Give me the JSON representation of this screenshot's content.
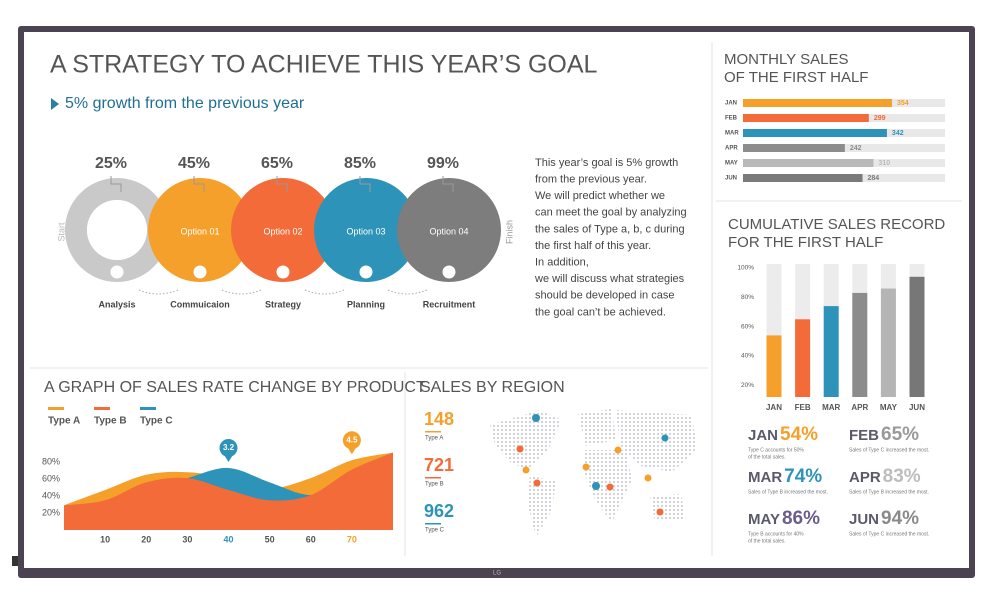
{
  "title": "A STRATEGY TO ACHIEVE THIS YEAR’S GOAL",
  "subtitle": "5% growth from the previous year",
  "steps": {
    "start": "Start",
    "finish": "Finish",
    "items": [
      {
        "percent": "25%",
        "label": "Analysis",
        "color": "#c9c9c9"
      },
      {
        "percent": "45%",
        "option": "Option 01",
        "label": "Commuicaion",
        "color": "#f5a02a"
      },
      {
        "percent": "65%",
        "option": "Option 02",
        "label": "Strategy",
        "color": "#f26b38"
      },
      {
        "percent": "85%",
        "option": "Option 03",
        "label": "Planning",
        "color": "#2e93b8"
      },
      {
        "percent": "99%",
        "option": "Option 04",
        "label": "Recruitment",
        "color": "#7d7d7d"
      }
    ]
  },
  "description": [
    "This year’s goal is 5% growth",
    "from the previous year.",
    "We will predict whether we",
    "can meet the goal by analyzing",
    "the sales of Type a, b, c during",
    "the first half of this year.",
    "In addition,",
    "we will discuss what strategies",
    "should be developed in case",
    "the goal can’t be achieved."
  ],
  "region": {
    "title": "SALES BY REGION",
    "items": [
      {
        "value": 148,
        "label": "Type A",
        "color": "#f5a02a"
      },
      {
        "value": 721,
        "label": "Type B",
        "color": "#f26b38"
      },
      {
        "value": 962,
        "label": "Type C",
        "color": "#2e93b8"
      }
    ]
  },
  "brand": "LG",
  "chart_data": [
    {
      "type": "hbar",
      "title": [
        "MONTHLY SALES",
        "OF THE FIRST HALF"
      ],
      "categories": [
        "JAN",
        "FEB",
        "MAR",
        "APR",
        "MAY",
        "JUN"
      ],
      "values": [
        354,
        299,
        342,
        242,
        310,
        284
      ],
      "colors": [
        "#f5a02a",
        "#f26b38",
        "#2e93b8",
        "#8c8c8c",
        "#b9b9b9",
        "#7a7a7a"
      ],
      "xlim": [
        0,
        480
      ]
    },
    {
      "type": "bar",
      "title": [
        "CUMULATIVE SALES RECORD",
        "FOR THE FIRST HALF"
      ],
      "categories": [
        "JAN",
        "FEB",
        "MAR",
        "APR",
        "MAY",
        "JUN"
      ],
      "values": [
        54,
        65,
        74,
        83,
        86,
        94
      ],
      "value_labels": [
        "54%",
        "65%",
        "74%",
        "83%",
        "86%",
        "94%"
      ],
      "colors": [
        "#f5a02a",
        "#f26b38",
        "#2e93b8",
        "#8c8c8c",
        "#b5b5b5",
        "#777777"
      ],
      "label_colors": [
        "#f5a02a",
        "#9a9a9a",
        "#2e93b8",
        "#bdbdbd",
        "#6a5d8a",
        "#8a8a8a"
      ],
      "captions": [
        [
          "Type C accounts for 50%",
          "of the total sales."
        ],
        [
          "Sales of Type C increased the most."
        ],
        [
          "Sales of Type B increased the most."
        ],
        [
          "Sales of Type B increased the most."
        ],
        [
          "Type B accounts for 40%",
          "of the total sales."
        ],
        [
          "Sales of Type C increased the most."
        ]
      ],
      "ylim": [
        12,
        100
      ],
      "yticks": [
        {
          "value": 100,
          "label": "100%"
        },
        {
          "value": 80,
          "label": "80%"
        },
        {
          "value": 60,
          "label": "60%"
        },
        {
          "value": 40,
          "label": "40%"
        },
        {
          "value": 20,
          "label": "20%"
        }
      ]
    },
    {
      "type": "area",
      "title": "A GRAPH OF SALES RATE CHANGE BY PRODUCT",
      "x": [
        0,
        10,
        20,
        30,
        40,
        50,
        60,
        70,
        80
      ],
      "series": [
        {
          "name": "Type A",
          "color": "#f5a02a",
          "values": [
            29,
            47,
            65,
            68,
            61,
            49,
            61,
            82,
            91
          ]
        },
        {
          "name": "Type B",
          "color": "#f26b38",
          "values": [
            29,
            35,
            56,
            61,
            47,
            35,
            41,
            71,
            91
          ]
        },
        {
          "name": "Type C",
          "color": "#2e93b8",
          "values": [
            21,
            26,
            47,
            61,
            73,
            56,
            41,
            53,
            71
          ]
        }
      ],
      "draw_order": [
        0,
        2,
        1
      ],
      "annotations": [
        {
          "x": 40,
          "value": 3.2,
          "color": "#2e93b8"
        },
        {
          "x": 70,
          "value": 4.5,
          "color": "#f5a02a"
        }
      ],
      "xlim": [
        0,
        80
      ],
      "xticks": [
        10,
        20,
        30,
        40,
        50,
        60,
        70
      ],
      "ylim": [
        0,
        100
      ],
      "yticks": [
        {
          "value": 20,
          "label": "20%"
        },
        {
          "value": 40,
          "label": "40%"
        },
        {
          "value": 60,
          "label": "60%"
        },
        {
          "value": 80,
          "label": "80%"
        }
      ]
    }
  ]
}
